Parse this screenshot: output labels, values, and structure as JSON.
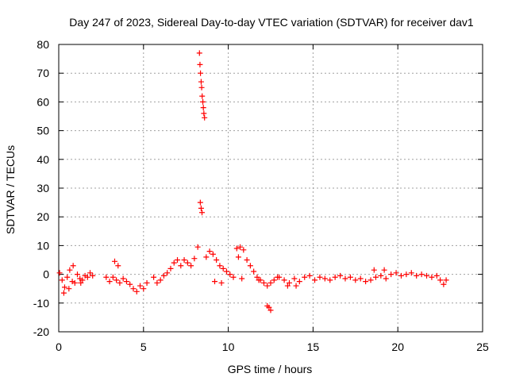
{
  "chart_data": {
    "type": "scatter",
    "title": "Day 247 of 2023, Sidereal Day-to-day VTEC variation (SDTVAR) for receiver dav1",
    "xlabel": "GPS time / hours",
    "ylabel": "SDTVAR / TECUs",
    "xlim": [
      0,
      25
    ],
    "ylim": [
      -20,
      80
    ],
    "xticks": [
      "0",
      "5",
      "10",
      "15",
      "20",
      "25"
    ],
    "yticks": [
      "-20",
      "-10",
      "0",
      "10",
      "20",
      "30",
      "40",
      "50",
      "60",
      "70",
      "80"
    ],
    "grid": true,
    "marker": "+",
    "color": "#ff0000",
    "series": [
      {
        "name": "SDTVAR",
        "x": [
          0.05,
          0.2,
          0.35,
          0.5,
          0.65,
          0.8,
          0.95,
          1.1,
          1.25,
          1.4,
          1.55,
          1.7,
          1.85,
          2.0,
          0.3,
          0.6,
          0.85,
          1.3,
          2.8,
          3.0,
          3.2,
          3.4,
          3.6,
          3.8,
          4.0,
          4.2,
          4.4,
          4.6,
          4.8,
          5.0,
          5.2,
          3.3,
          3.5,
          5.6,
          5.8,
          6.0,
          6.2,
          6.4,
          6.6,
          6.8,
          7.0,
          7.2,
          7.4,
          7.6,
          7.8,
          8.0,
          8.2,
          8.3,
          8.33,
          8.36,
          8.4,
          8.43,
          8.46,
          8.5,
          8.53,
          8.56,
          8.6,
          8.35,
          8.4,
          8.45,
          8.7,
          8.9,
          9.1,
          9.3,
          9.5,
          9.7,
          9.9,
          10.1,
          10.3,
          10.5,
          10.7,
          10.9,
          11.1,
          11.3,
          11.5,
          11.7,
          11.9,
          12.1,
          12.3,
          12.5,
          12.7,
          12.9,
          9.2,
          9.6,
          10.6,
          10.8,
          11.8,
          12.3,
          12.4,
          12.5,
          13.0,
          13.3,
          13.6,
          13.9,
          14.2,
          14.5,
          14.8,
          15.1,
          15.4,
          15.7,
          16.0,
          16.3,
          16.6,
          16.9,
          17.2,
          17.5,
          17.8,
          18.1,
          18.4,
          18.7,
          19.0,
          19.3,
          19.6,
          19.9,
          20.2,
          20.5,
          20.8,
          21.1,
          21.4,
          21.7,
          22.0,
          22.3,
          22.5,
          22.7,
          22.85,
          13.5,
          14.0,
          18.6,
          19.2
        ],
        "y": [
          0.5,
          -2,
          -4.5,
          -1,
          1.5,
          -2.5,
          -3,
          0,
          -1.5,
          -2,
          -0.5,
          -1,
          0.5,
          -0.5,
          -6.5,
          -5,
          3,
          -3,
          -1,
          -2.5,
          -1,
          -2,
          -3,
          -1.5,
          -2.5,
          -3.5,
          -5,
          -6,
          -4,
          -5,
          -3,
          4.5,
          3,
          -1,
          -3,
          -2,
          -0.5,
          0.5,
          2,
          4,
          5,
          3,
          5,
          4,
          3,
          5.5,
          9.5,
          77,
          73,
          70,
          67,
          65,
          62,
          60,
          58,
          56,
          54.5,
          25,
          23,
          21.5,
          6,
          8,
          7,
          5,
          3,
          2,
          1,
          0,
          -1,
          9,
          9.5,
          8.5,
          5,
          3,
          1,
          -1,
          -2,
          -3,
          -4,
          -3,
          -2,
          -1,
          -2.5,
          -3,
          6,
          -1.5,
          -2,
          -11,
          -11.5,
          -12.5,
          -1,
          -2,
          -3,
          -1.5,
          -2.5,
          -1,
          -0.5,
          -2,
          -1,
          -1.5,
          -2,
          -1,
          -0.5,
          -1.5,
          -1,
          -2,
          -1.5,
          -2.5,
          -2,
          -1,
          -0.5,
          -1.5,
          0,
          0.5,
          -0.5,
          0,
          0.5,
          -0.5,
          0,
          -0.5,
          -1,
          -0.5,
          -2,
          -3.5,
          -2,
          -4,
          -4,
          1.5,
          1.5
        ]
      }
    ]
  }
}
